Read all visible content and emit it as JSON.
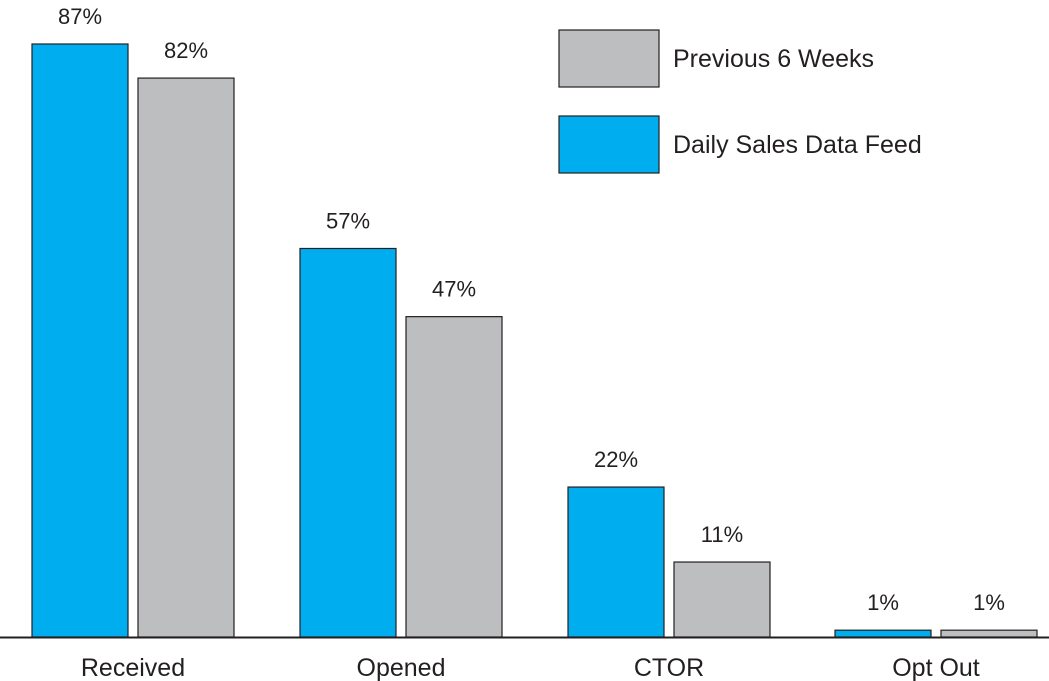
{
  "chart_data": {
    "type": "bar",
    "categories": [
      "Received",
      "Opened",
      "CTOR",
      "Opt Out"
    ],
    "series": [
      {
        "name": "Daily Sales Data Feed",
        "values": [
          87,
          57,
          22,
          1
        ],
        "labels": [
          "87%",
          "57%",
          "22%",
          "1%"
        ],
        "color": "#00ADEF"
      },
      {
        "name": "Previous 6 Weeks",
        "values": [
          82,
          47,
          11,
          1
        ],
        "labels": [
          "82%",
          "47%",
          "11%",
          "1%"
        ],
        "color": "#BCBEC0"
      }
    ],
    "legend": {
      "placement": "top-right",
      "order": [
        "Previous 6 Weeks",
        "Daily Sales Data Feed"
      ]
    },
    "ylim": [
      0,
      87
    ],
    "grid": false,
    "title": "",
    "xlabel": "",
    "ylabel": ""
  }
}
